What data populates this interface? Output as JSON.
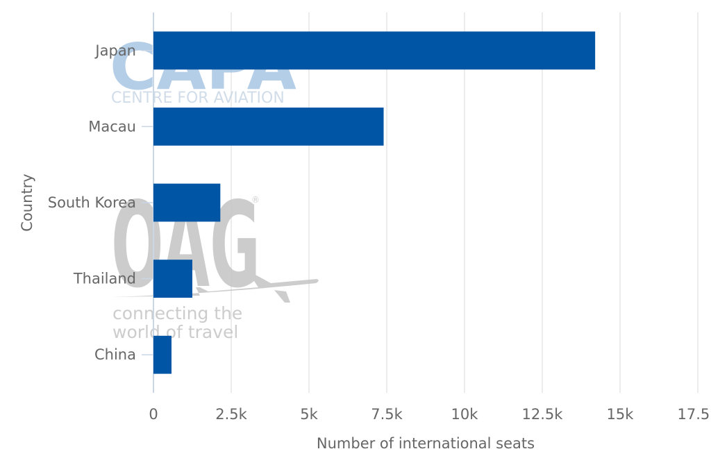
{
  "chart_data": {
    "type": "bar",
    "orientation": "horizontal",
    "categories": [
      "Japan",
      "Macau",
      "South Korea",
      "Thailand",
      "China"
    ],
    "values": [
      14200,
      7400,
      2150,
      1250,
      580
    ],
    "xlabel": "Number of international seats",
    "ylabel": "Country",
    "xlim": [
      0,
      17500
    ],
    "xticks": [
      0,
      2500,
      5000,
      7500,
      10000,
      12500,
      15000,
      17500
    ],
    "xtick_labels": [
      "0",
      "2.5k",
      "5k",
      "7.5k",
      "10k",
      "12.5k",
      "15k",
      "17.5k"
    ],
    "grid": true,
    "bar_color": "#0055a5"
  },
  "watermarks": {
    "capa_logo": "CAPA",
    "capa_tagline": "CENTRE FOR AVIATION",
    "oag_logo": "OAG",
    "oag_tagline": [
      "connecting the",
      "world of travel"
    ],
    "capa_color": "#a9c6e4",
    "oag_color": "#c4c4c4"
  }
}
